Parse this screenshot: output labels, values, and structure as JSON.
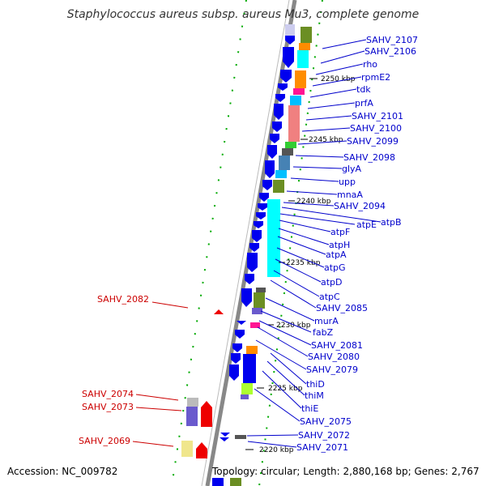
{
  "title": "Staphylococcus aureus subsp. aureus Mu3, complete genome",
  "accession": "Accession: NC_009782",
  "topology": "Topology: circular; Length: 2,880,168 bp; Genes: 2,767",
  "kbp_ticks": [
    "2250 kbp",
    "2245 kbp",
    "2240 kbp",
    "2235 kbp",
    "2230 kbp",
    "2225 kbp",
    "2220 kbp"
  ],
  "forward_genes": [
    "SAHV_2107",
    "SAHV_2106",
    "rho",
    "rpmE2",
    "tdk",
    "prfA",
    "SAHV_2101",
    "SAHV_2100",
    "SAHV_2099",
    "SAHV_2098",
    "glyA",
    "upp",
    "mnaA",
    "SAHV_2094",
    "atpB",
    "atpE",
    "atpF",
    "atpH",
    "atpA",
    "atpG",
    "atpD",
    "atpC",
    "SAHV_2085",
    "murA",
    "fabZ",
    "SAHV_2081",
    "SAHV_2080",
    "SAHV_2079",
    "thiD",
    "thiM",
    "thiE",
    "SAHV_2075",
    "SAHV_2072",
    "SAHV_2071"
  ],
  "reverse_genes": [
    "SAHV_2082",
    "SAHV_2074",
    "SAHV_2073",
    "SAHV_2069"
  ],
  "colors": {
    "forward_label": "#0000cc",
    "reverse_label": "#cc0000",
    "gene_arrow_fwd": "#0000ee",
    "gene_arrow_rev": "#ee0000",
    "backbone": "#888888",
    "gc_marks": "#008800"
  }
}
